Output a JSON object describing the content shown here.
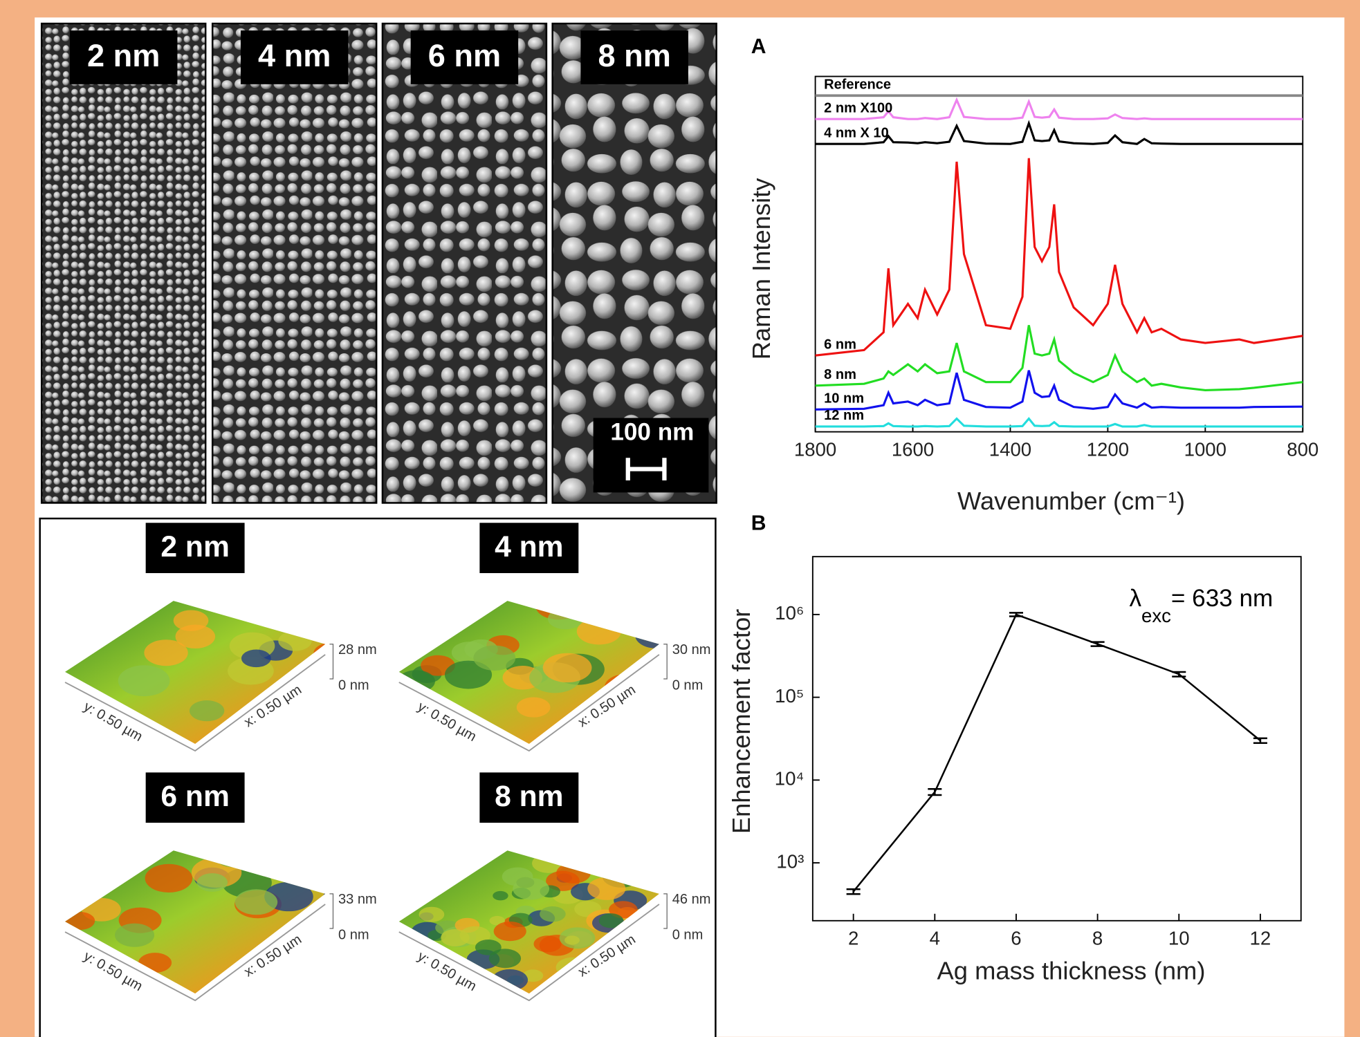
{
  "sem": {
    "labels": [
      "2 nm",
      "4 nm",
      "6 nm",
      "8 nm"
    ],
    "scale_bar": "100 nm"
  },
  "afm": {
    "panels": [
      {
        "label": "2 nm",
        "z_max": "28 nm",
        "z_min": "0 nm",
        "y_axis": "y: 0.50 µm",
        "x_axis": "x: 0.50 µm"
      },
      {
        "label": "4 nm",
        "z_max": "30 nm",
        "z_min": "0 nm",
        "y_axis": "y: 0.50 µm",
        "x_axis": "x: 0.50 µm"
      },
      {
        "label": "6 nm",
        "z_max": "33 nm",
        "z_min": "0 nm",
        "y_axis": "y: 0.50 µm",
        "x_axis": "x: 0.50 µm"
      },
      {
        "label": "8 nm",
        "z_max": "46 nm",
        "z_min": "0 nm",
        "y_axis": "y: 0.50 µm",
        "x_axis": "x: 0.50 µm"
      }
    ]
  },
  "chart_data": [
    {
      "type": "line",
      "panel_label": "A",
      "x_label": "Wavenumber (cm⁻¹)",
      "y_label": "Raman Intensity",
      "x": [
        1800,
        1700,
        1660,
        1650,
        1640,
        1610,
        1600,
        1590,
        1575,
        1550,
        1525,
        1510,
        1495,
        1450,
        1400,
        1375,
        1362,
        1350,
        1335,
        1320,
        1310,
        1300,
        1270,
        1230,
        1200,
        1185,
        1170,
        1140,
        1125,
        1110,
        1090,
        1050,
        1000,
        930,
        900,
        800
      ],
      "xlim": [
        1800,
        800
      ],
      "xticks": [
        1800,
        1600,
        1400,
        1200,
        1000,
        800
      ],
      "ylim": [
        0,
        100
      ],
      "series": [
        {
          "name": "Reference",
          "color": "#888888",
          "values": [
            94.6,
            94.6,
            94.6,
            94.6,
            94.6,
            94.6,
            94.6,
            94.6,
            94.6,
            94.6,
            94.6,
            94.6,
            94.6,
            94.6,
            94.6,
            94.6,
            94.6,
            94.6,
            94.6,
            94.6,
            94.6,
            94.6,
            94.6,
            94.6,
            94.6,
            94.6,
            94.6,
            94.6,
            94.6,
            94.6,
            94.6,
            94.6,
            94.6,
            94.6,
            94.6,
            94.6
          ]
        },
        {
          "name": "2 nm X100",
          "color": "#ee82ee",
          "values": [
            88,
            88,
            88.5,
            90.2,
            88.5,
            88,
            88,
            88,
            88.3,
            88,
            88.5,
            93.4,
            88.6,
            88,
            88,
            88.4,
            92.9,
            88.6,
            88.4,
            88.6,
            90.7,
            88.4,
            88,
            88,
            88.2,
            89.3,
            88.3,
            88,
            88.2,
            88,
            88,
            88,
            88,
            88,
            88,
            88
          ]
        },
        {
          "name": "4 nm X 10",
          "color": "#000000",
          "values": [
            81,
            81,
            81.5,
            83.2,
            81.5,
            81.4,
            81.3,
            81.2,
            81.5,
            81.2,
            81.6,
            86.1,
            81.8,
            81.1,
            81,
            81.6,
            86.8,
            82,
            81.8,
            82,
            84.9,
            81.7,
            81.2,
            81,
            81.3,
            83.4,
            81.5,
            81,
            82.4,
            81.2,
            81.1,
            81,
            81,
            81,
            81,
            81
          ]
        },
        {
          "name": "6 nm",
          "color": "#ee1111",
          "values": [
            21.5,
            23,
            28,
            46,
            30,
            36,
            34,
            32,
            40,
            33,
            40,
            76,
            50,
            30,
            29,
            38,
            77,
            52,
            48,
            52,
            64,
            45,
            35,
            30,
            36,
            47,
            36,
            28,
            32,
            28,
            29,
            26,
            25,
            26,
            25,
            27
          ]
        },
        {
          "name": "8 nm",
          "color": "#22dd22",
          "values": [
            13,
            13.5,
            15,
            17,
            16,
            19,
            18,
            17,
            19,
            16.5,
            17,
            25,
            17,
            14,
            14,
            18,
            30,
            22,
            21.5,
            22,
            26,
            20,
            16.6,
            14,
            16,
            21.5,
            17,
            14,
            15,
            13,
            13.5,
            12.5,
            11.7,
            12,
            12.4,
            14
          ]
        },
        {
          "name": "10 nm",
          "color": "#1111ee",
          "values": [
            6.3,
            6.5,
            7.5,
            11,
            8,
            8.5,
            8,
            7.5,
            9,
            7.5,
            8,
            16.6,
            9,
            7,
            6.8,
            8.5,
            17.3,
            11,
            9.8,
            10,
            13,
            9,
            7,
            6.5,
            7,
            10.5,
            8,
            6.8,
            8,
            6.8,
            7,
            6.8,
            6.8,
            6.8,
            7,
            7.1
          ]
        },
        {
          "name": "12 nm",
          "color": "#22dddd",
          "values": [
            1.5,
            1.5,
            1.6,
            2.4,
            1.6,
            1.5,
            1.5,
            1.5,
            1.6,
            1.5,
            1.6,
            3.7,
            1.7,
            1.5,
            1.5,
            1.6,
            3.7,
            1.7,
            1.6,
            1.7,
            2.7,
            1.6,
            1.5,
            1.5,
            1.5,
            2.2,
            1.5,
            1.5,
            1.9,
            1.5,
            1.5,
            1.5,
            1.5,
            1.5,
            1.5,
            1.5
          ]
        }
      ]
    },
    {
      "type": "line",
      "panel_label": "B",
      "x_label": "Ag mass thickness (nm)",
      "y_label": "Enhancement factor",
      "annotation": {
        "symbol": "λ",
        "subscript": "exc",
        "text": "= 633 nm"
      },
      "x": [
        2,
        4,
        6,
        8,
        10,
        12
      ],
      "values": [
        450,
        7200,
        1000000,
        440000,
        190000,
        30000
      ],
      "errors": [
        30,
        600,
        50000,
        25000,
        12000,
        2000
      ],
      "color": "#000000",
      "log_y": true,
      "xlim": [
        1,
        13
      ],
      "xticks": [
        2,
        4,
        6,
        8,
        10,
        12
      ],
      "ylim": [
        200,
        5000000
      ],
      "yticks": [
        {
          "value": 1000,
          "label": "10³"
        },
        {
          "value": 10000,
          "label": "10⁴"
        },
        {
          "value": 100000,
          "label": "10⁵"
        },
        {
          "value": 1000000,
          "label": "10⁶"
        }
      ]
    }
  ]
}
